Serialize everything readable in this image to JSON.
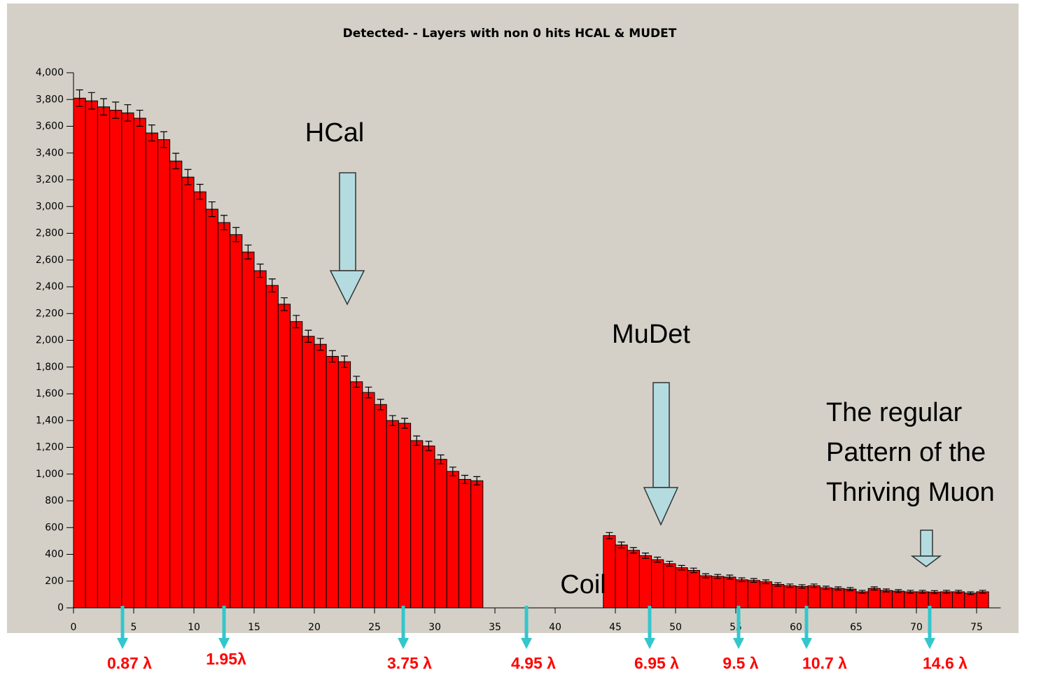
{
  "chart_data": {
    "type": "histogram",
    "title": "Detected- - Layers with non 0 hits HCAL & MUDET",
    "bins": [
      0,
      1,
      2,
      3,
      4,
      5,
      6,
      7,
      8,
      9,
      10,
      11,
      12,
      13,
      14,
      15,
      16,
      17,
      18,
      19,
      20,
      21,
      22,
      23,
      24,
      25,
      26,
      27,
      28,
      29,
      30,
      31,
      32,
      33,
      34,
      35,
      36,
      37,
      38,
      39,
      40,
      41,
      42,
      43,
      44,
      45,
      46,
      47,
      48,
      49,
      50,
      51,
      52,
      53,
      54,
      55,
      56,
      57,
      58,
      59,
      60,
      61,
      62,
      63,
      64,
      65,
      66,
      67,
      68,
      69,
      70,
      71,
      72,
      73,
      74,
      75,
      76
    ],
    "counts": [
      3810,
      3790,
      3745,
      3720,
      3700,
      3660,
      3550,
      3500,
      3340,
      3220,
      3110,
      2980,
      2880,
      2790,
      2660,
      2520,
      2410,
      2270,
      2140,
      2030,
      1970,
      1880,
      1840,
      1690,
      1610,
      1520,
      1400,
      1380,
      1250,
      1210,
      1110,
      1020,
      960,
      950,
      0,
      0,
      0,
      0,
      0,
      0,
      0,
      0,
      0,
      0,
      540,
      470,
      430,
      390,
      360,
      330,
      300,
      280,
      240,
      235,
      230,
      210,
      205,
      195,
      175,
      165,
      160,
      165,
      150,
      145,
      140,
      120,
      145,
      130,
      125,
      120,
      120,
      118,
      120,
      120,
      110,
      120
    ],
    "errors": [
      62,
      62,
      61,
      61,
      61,
      60,
      60,
      59,
      58,
      57,
      56,
      55,
      54,
      53,
      52,
      50,
      49,
      48,
      46,
      45,
      44,
      43,
      43,
      41,
      40,
      39,
      37,
      37,
      35,
      35,
      33,
      32,
      31,
      31,
      0,
      0,
      0,
      0,
      0,
      0,
      0,
      0,
      0,
      0,
      23,
      22,
      21,
      20,
      19,
      18,
      17,
      17,
      15,
      15,
      15,
      14,
      14,
      14,
      13,
      13,
      13,
      13,
      12,
      12,
      12,
      11,
      12,
      11,
      11,
      11,
      11,
      11,
      11,
      11,
      10,
      11
    ],
    "color": "#ff0000",
    "xlim": [
      0,
      77
    ],
    "xticks": [
      0,
      5,
      10,
      15,
      20,
      25,
      30,
      35,
      40,
      45,
      50,
      55,
      60,
      65,
      70,
      75
    ],
    "ylim": [
      0,
      4000
    ],
    "yticks": [
      0,
      200,
      400,
      600,
      800,
      {
        "value": 1000,
        "label": "1,000"
      },
      {
        "value": 1200,
        "label": "1,200"
      },
      {
        "value": 1400,
        "label": "1,400"
      },
      {
        "value": 1600,
        "label": "1,600"
      },
      {
        "value": 1800,
        "label": "1,800"
      },
      {
        "value": 2000,
        "label": "2,000"
      },
      {
        "value": 2200,
        "label": "2,200"
      },
      {
        "value": 2400,
        "label": "2,400"
      },
      {
        "value": 2600,
        "label": "2,600"
      },
      {
        "value": 2800,
        "label": "2,800"
      },
      {
        "value": 3000,
        "label": "3,000"
      },
      {
        "value": 3200,
        "label": "3,200"
      },
      {
        "value": 3400,
        "label": "3,400"
      },
      {
        "value": 3600,
        "label": "3,600"
      },
      {
        "value": 3800,
        "label": "3,800"
      },
      {
        "value": 4000,
        "label": "4,000"
      }
    ],
    "annotations": [
      "HCal",
      "MuDet",
      "Coil"
    ],
    "note": [
      "The regular",
      "Pattern of the",
      "Thriving Muon"
    ],
    "depth_labels": [
      "0.87 λ",
      "1.95λ",
      "3.75 λ",
      "4.95 λ",
      "6.95 λ",
      "9.5 λ",
      "10.7 λ",
      "14.6 λ"
    ]
  }
}
